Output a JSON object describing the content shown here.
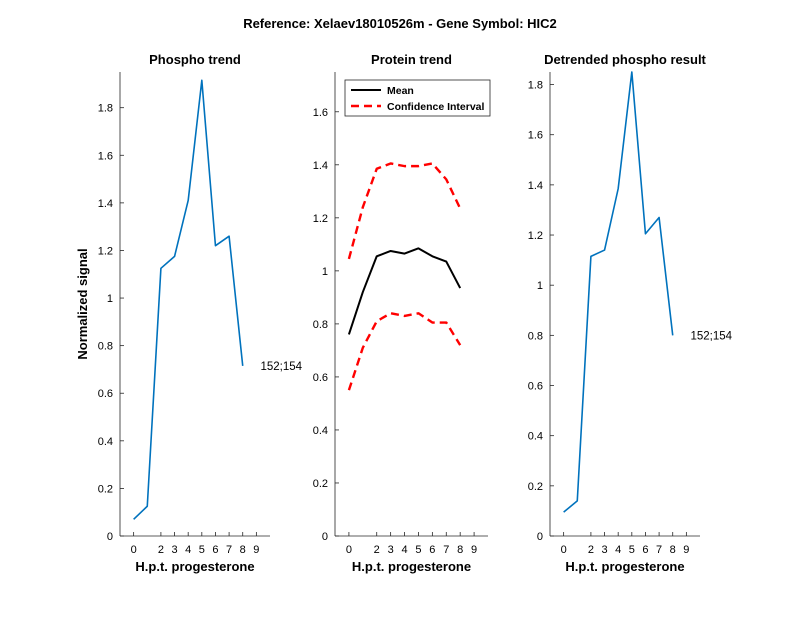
{
  "figure": {
    "title": "Reference:  Xelaev18010526m - Gene Symbol:  HIC2"
  },
  "chart_data": [
    {
      "type": "line",
      "title": "Phospho trend",
      "xlabel": "H.p.t. progesterone",
      "ylabel": "Normalized signal",
      "xlim": [
        -1,
        10
      ],
      "ylim": [
        0,
        1.95
      ],
      "xticks": [
        0,
        2,
        3,
        4,
        5,
        6,
        7,
        8,
        9
      ],
      "yticks": [
        0,
        0.2,
        0.4,
        0.6,
        0.8,
        1,
        1.2,
        1.4,
        1.6,
        1.8
      ],
      "ytick_labels": [
        "0",
        "0.2",
        "0.4",
        "0.6",
        "0.8",
        "1",
        "1.2",
        "1.4",
        "1.6",
        "1.8"
      ],
      "series": [
        {
          "color": "#0072BD",
          "style": "solid",
          "x": [
            0,
            1,
            2,
            3,
            4,
            5,
            6,
            7,
            8,
            9
          ],
          "y": [
            0.07,
            0.125,
            1.125,
            1.175,
            1.41,
            1.915,
            1.22,
            1.26,
            0.715,
            null
          ]
        }
      ],
      "annotations": [
        {
          "text": "152;154",
          "x": 9.3,
          "y": 0.715
        }
      ]
    },
    {
      "type": "line",
      "title": "Protein trend",
      "xlabel": "H.p.t. progesterone",
      "ylabel": "",
      "xlim": [
        -1,
        10
      ],
      "ylim": [
        0,
        1.75
      ],
      "xticks": [
        0,
        2,
        3,
        4,
        5,
        6,
        7,
        8,
        9
      ],
      "yticks": [
        0,
        0.2,
        0.4,
        0.6,
        0.8,
        1,
        1.2,
        1.4,
        1.6
      ],
      "ytick_labels": [
        "0",
        "0.2",
        "0.4",
        "0.6",
        "0.8",
        "1",
        "1.2",
        "1.4",
        "1.6"
      ],
      "legend": {
        "position": "top-left",
        "entries": [
          "Mean",
          "Confidence Interval"
        ]
      },
      "series": [
        {
          "name": "Mean",
          "color": "#000000",
          "style": "solid",
          "x": [
            0,
            1,
            2,
            3,
            4,
            5,
            6,
            7,
            8,
            9
          ],
          "y": [
            0.76,
            0.92,
            1.055,
            1.075,
            1.065,
            1.085,
            1.055,
            1.035,
            0.935,
            null
          ]
        },
        {
          "name": "Confidence Interval",
          "color": "#FF0000",
          "style": "dashed",
          "x": [
            0,
            1,
            2,
            3,
            4,
            5,
            6,
            7,
            8,
            9
          ],
          "y": [
            1.045,
            1.24,
            1.385,
            1.405,
            1.395,
            1.395,
            1.405,
            1.345,
            1.235,
            null
          ]
        },
        {
          "color": "#FF0000",
          "style": "dashed",
          "x": [
            0,
            1,
            2,
            3,
            4,
            5,
            6,
            7,
            8,
            9
          ],
          "y": [
            0.55,
            0.71,
            0.81,
            0.84,
            0.83,
            0.84,
            0.805,
            0.805,
            0.72,
            null
          ]
        }
      ]
    },
    {
      "type": "line",
      "title": "Detrended phospho result",
      "xlabel": "H.p.t. progesterone",
      "ylabel": "",
      "xlim": [
        -1,
        10
      ],
      "ylim": [
        0,
        1.85
      ],
      "xticks": [
        0,
        2,
        3,
        4,
        5,
        6,
        7,
        8,
        9
      ],
      "yticks": [
        0,
        0.2,
        0.4,
        0.6,
        0.8,
        1,
        1.2,
        1.4,
        1.6,
        1.8
      ],
      "ytick_labels": [
        "0",
        "0.2",
        "0.4",
        "0.6",
        "0.8",
        "1",
        "1.2",
        "1.4",
        "1.6",
        "1.8"
      ],
      "series": [
        {
          "color": "#0072BD",
          "style": "solid",
          "x": [
            0,
            1,
            2,
            3,
            4,
            5,
            6,
            7,
            8,
            9
          ],
          "y": [
            0.095,
            0.14,
            1.115,
            1.14,
            1.385,
            1.85,
            1.205,
            1.27,
            0.8,
            null
          ]
        }
      ],
      "annotations": [
        {
          "text": "152;154",
          "x": 9.3,
          "y": 0.8
        }
      ]
    }
  ]
}
